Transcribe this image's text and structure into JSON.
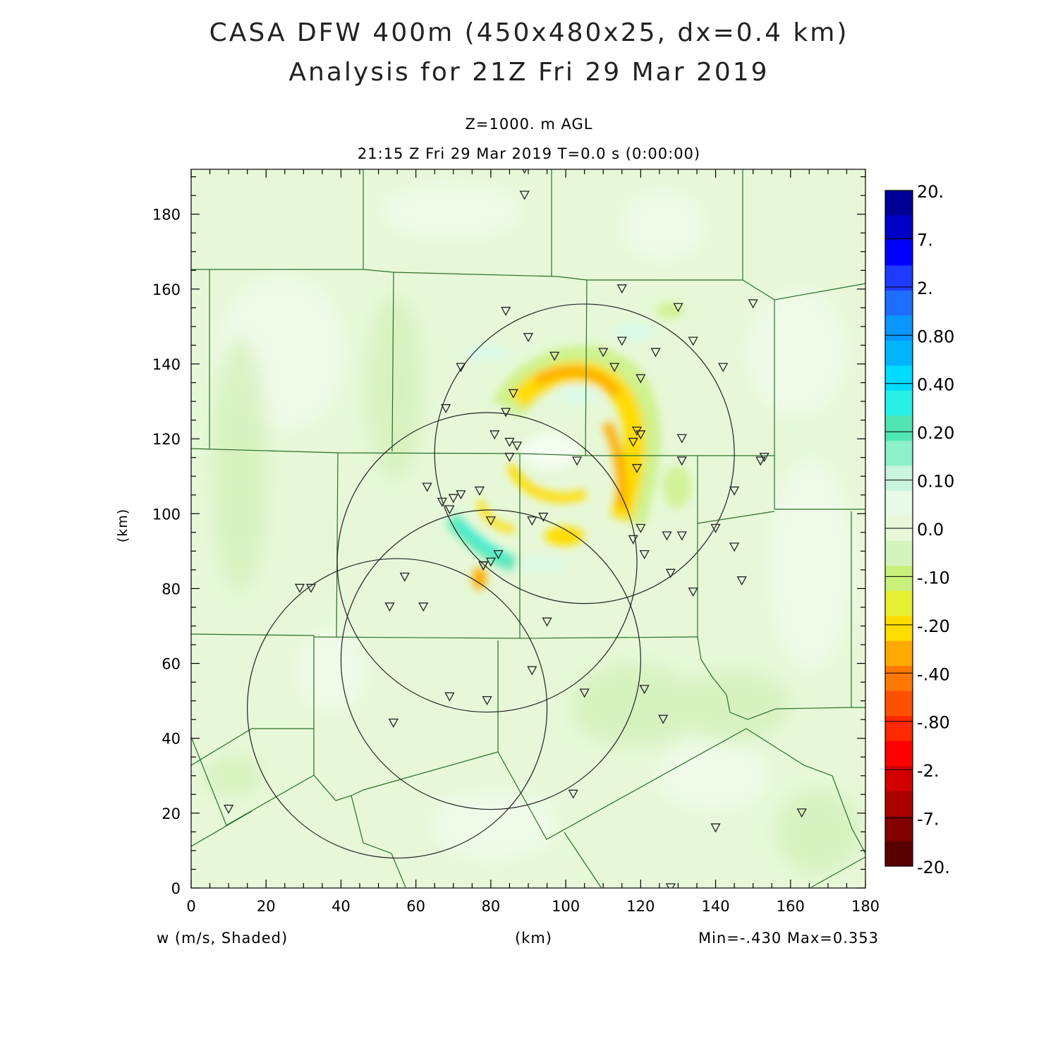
{
  "title_line1": "CASA DFW 400m (450x480x25, dx=0.4 km)",
  "title_line2": "Analysis for 21Z Fri 29 Mar 2019",
  "level_label": "Z=1000. m AGL",
  "time_label": "21:15 Z Fri 29 Mar 2019    T=0.0 s (0:00:00)",
  "x_axis_label": "(km)",
  "y_axis_label": "(km)",
  "field_label": "w (m/s, Shaded)",
  "minmax_label": "Min=-.430 Max=0.353",
  "x_ticks": [
    "0",
    "20",
    "40",
    "60",
    "80",
    "100",
    "120",
    "140",
    "160",
    "180"
  ],
  "y_ticks": [
    "0",
    "20",
    "40",
    "60",
    "80",
    "100",
    "120",
    "140",
    "160",
    "180"
  ],
  "colorbar_labels": [
    "20.",
    "7.",
    "2.",
    "0.80",
    "0.40",
    "0.20",
    "0.10",
    "0.0",
    "-.10",
    "-.20",
    "-.40",
    "-.80",
    "-2.",
    "-7.",
    "-20."
  ],
  "colorbar_colors": [
    "#000096",
    "#0000c8",
    "#0000ff",
    "#1e3cff",
    "#1e6eff",
    "#0a96ff",
    "#00b4ff",
    "#00dcff",
    "#28f0e6",
    "#50e6b4",
    "#8cf0c8",
    "#c8f5dc",
    "#e6fae6",
    "#e6f8d8",
    "#d4f4be",
    "#c8f07a",
    "#e6f032",
    "#ffdc00",
    "#ffaa00",
    "#ff7800",
    "#ff5000",
    "#ff2800",
    "#ff0000",
    "#d20000",
    "#aa0000",
    "#820000",
    "#5a0000"
  ],
  "radar_circles": [
    {
      "cx": 105,
      "cy": 116,
      "r": 40
    },
    {
      "cx": 79,
      "cy": 87,
      "r": 40
    },
    {
      "cx": 80,
      "cy": 61,
      "r": 40
    },
    {
      "cx": 55,
      "cy": 48,
      "r": 40
    }
  ],
  "stations": [
    [
      89,
      192
    ],
    [
      89,
      185
    ],
    [
      115,
      160
    ],
    [
      150,
      156
    ],
    [
      84,
      154
    ],
    [
      130,
      155
    ],
    [
      90,
      147
    ],
    [
      97,
      142
    ],
    [
      110,
      143
    ],
    [
      115,
      146
    ],
    [
      124,
      143
    ],
    [
      134,
      146
    ],
    [
      142,
      139
    ],
    [
      72,
      139
    ],
    [
      113,
      139
    ],
    [
      120,
      136
    ],
    [
      86,
      132
    ],
    [
      68,
      128
    ],
    [
      84,
      127
    ],
    [
      81,
      121
    ],
    [
      119,
      122
    ],
    [
      120,
      121
    ],
    [
      131,
      120
    ],
    [
      85,
      119
    ],
    [
      87,
      118
    ],
    [
      118,
      119
    ],
    [
      85,
      115
    ],
    [
      103,
      114
    ],
    [
      131,
      114
    ],
    [
      152,
      114
    ],
    [
      153,
      115
    ],
    [
      119,
      112
    ],
    [
      63,
      107
    ],
    [
      77,
      106
    ],
    [
      72,
      105
    ],
    [
      70,
      104
    ],
    [
      67,
      103
    ],
    [
      69,
      101
    ],
    [
      145,
      106
    ],
    [
      94,
      99
    ],
    [
      80,
      98
    ],
    [
      91,
      98
    ],
    [
      120,
      96
    ],
    [
      140,
      96
    ],
    [
      118,
      93
    ],
    [
      127,
      94
    ],
    [
      131,
      94
    ],
    [
      145,
      91
    ],
    [
      82,
      89
    ],
    [
      121,
      89
    ],
    [
      80,
      87
    ],
    [
      78,
      86
    ],
    [
      78,
      86
    ],
    [
      128,
      84
    ],
    [
      57,
      83
    ],
    [
      147,
      82
    ],
    [
      29,
      80
    ],
    [
      32,
      80
    ],
    [
      134,
      79
    ],
    [
      62,
      75
    ],
    [
      53,
      75
    ],
    [
      95,
      71
    ],
    [
      91,
      58
    ],
    [
      121,
      53
    ],
    [
      105,
      52
    ],
    [
      69,
      51
    ],
    [
      79,
      50
    ],
    [
      126,
      45
    ],
    [
      54,
      44
    ],
    [
      102,
      25
    ],
    [
      10,
      21
    ],
    [
      163,
      20
    ],
    [
      140,
      16
    ],
    [
      128,
      0
    ]
  ]
}
